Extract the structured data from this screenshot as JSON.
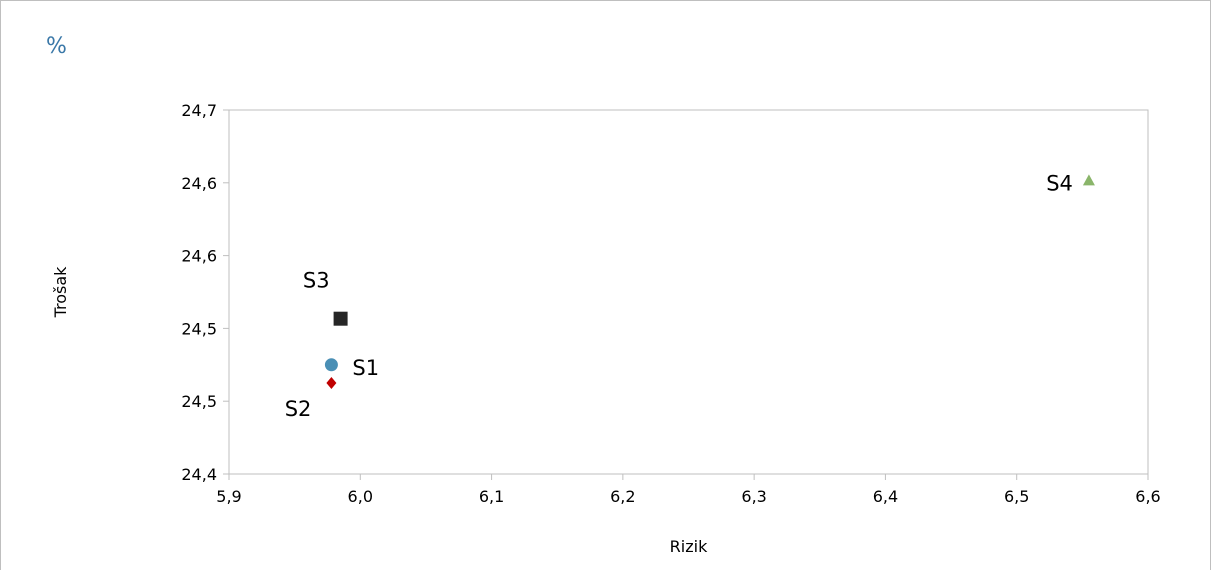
{
  "unit_label": "%",
  "chart_data": {
    "type": "scatter",
    "title": "",
    "xlabel": "Rizik",
    "ylabel": "Trošak",
    "xlim": [
      5.9,
      6.6
    ],
    "ylim": [
      24.4,
      24.7
    ],
    "x_ticks": [
      "5,9",
      "6,0",
      "6,1",
      "6,2",
      "6,3",
      "6,4",
      "6,5",
      "6,6"
    ],
    "y_ticks": [
      "24,4",
      "24,5",
      "24,5",
      "24,6",
      "24,6",
      "24,7"
    ],
    "grid": false,
    "legend": "none",
    "series": [
      {
        "label": "S1",
        "x": 5.978,
        "y": 24.49,
        "marker": "circle",
        "color": "#4a8fb5",
        "label_pos": "right"
      },
      {
        "label": "S2",
        "x": 5.978,
        "y": 24.475,
        "marker": "diamond",
        "color": "#c00000",
        "label_pos": "below-left"
      },
      {
        "label": "S3",
        "x": 5.985,
        "y": 24.528,
        "marker": "square",
        "color": "#262626",
        "label_pos": "above-left"
      },
      {
        "label": "S4",
        "x": 6.555,
        "y": 24.642,
        "marker": "triangle",
        "color": "#8ab56a",
        "label_pos": "left"
      }
    ]
  }
}
